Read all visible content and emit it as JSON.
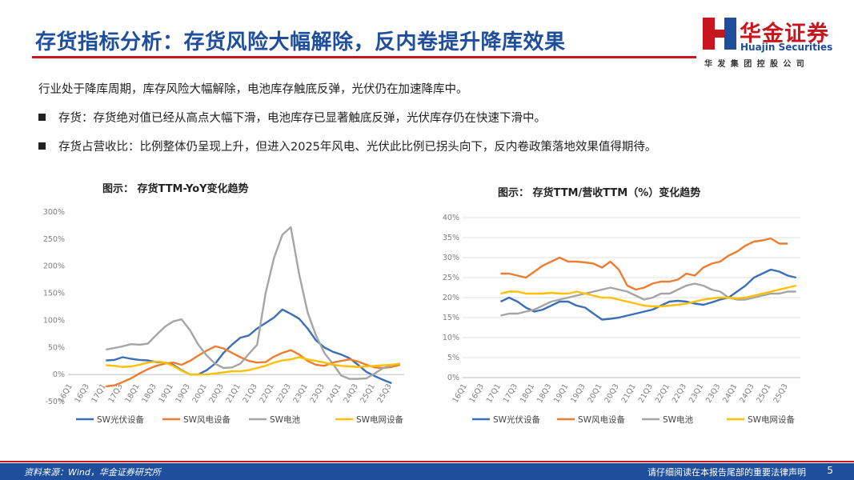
{
  "title": "存货指标分析：存货风险大幅解除，反内卷提升降库效果",
  "logo": {
    "cn": "华金证券",
    "en": "Huajin Securities",
    "sub": "华发集团控股公司"
  },
  "intro": "行业处于降库周期，库存风险大幅解除，电池库存触底反弹，光伏仍在加速降库中。",
  "bullets": [
    "存货：存货绝对值已经从高点大幅下滑，电池库存已显著触底反弹，光伏库存仍在快速下滑中。",
    "存货占营收比：比例整体仍呈现上升，但进入2025年风电、光伏此比例已拐头向下，反内卷政策落地效果值得期待。"
  ],
  "colors": {
    "pv": "#3d6fb6",
    "wind": "#ed7d31",
    "battery": "#a5a5a5",
    "grid": "#ffc000",
    "brand_blue": "#1f4e9c",
    "brand_red": "#c9151e"
  },
  "chart_data": [
    {
      "type": "line",
      "title": "图示：  存货TTM-YoY变化趋势",
      "ylim": [
        -50,
        300
      ],
      "yticks": [
        "-50%",
        "0%",
        "50%",
        "100%",
        "150%",
        "200%",
        "250%",
        "300%"
      ],
      "ytick_values": [
        -50,
        0,
        50,
        100,
        150,
        200,
        250,
        300
      ],
      "x_labels": [
        "16Q1",
        "16Q3",
        "17Q1",
        "17Q3",
        "18Q1",
        "18Q3",
        "19Q1",
        "19Q3",
        "20Q1",
        "20Q3",
        "21Q1",
        "21Q3",
        "22Q1",
        "22Q3",
        "23Q1",
        "23Q3",
        "24Q1",
        "24Q3",
        "25Q1",
        "25Q3"
      ],
      "series": [
        {
          "name": "SW光伏设备",
          "start": 4,
          "values": [
            26,
            27,
            32,
            29,
            27,
            26,
            23,
            22,
            18,
            8,
            0,
            0,
            8,
            20,
            40,
            55,
            68,
            72,
            85,
            95,
            105,
            120,
            112,
            103,
            85,
            63,
            50,
            42,
            37,
            30,
            18,
            5,
            -3,
            -10,
            -16
          ]
        },
        {
          "name": "SW风电设备",
          "start": 4,
          "values": [
            -22,
            -20,
            -14,
            -7,
            2,
            10,
            16,
            20,
            22,
            18,
            25,
            35,
            44,
            52,
            48,
            40,
            32,
            25,
            22,
            23,
            33,
            40,
            45,
            37,
            25,
            18,
            16,
            22,
            25,
            28,
            24,
            18,
            13,
            12,
            14,
            18
          ]
        },
        {
          "name": "SW电池",
          "start": 4,
          "values": [
            46,
            49,
            52,
            56,
            55,
            57,
            73,
            88,
            98,
            102,
            82,
            55,
            35,
            20,
            12,
            13,
            20,
            38,
            55,
            150,
            215,
            258,
            272,
            185,
            115,
            72,
            40,
            20,
            -2,
            -8,
            -8,
            -7,
            2,
            12,
            17,
            20
          ]
        },
        {
          "name": "SW电网设备",
          "start": 4,
          "values": [
            17,
            16,
            14,
            15,
            18,
            22,
            24,
            22,
            16,
            7,
            0,
            0,
            0,
            2,
            4,
            6,
            6,
            8,
            12,
            16,
            22,
            26,
            28,
            32,
            28,
            25,
            22,
            18,
            16,
            15,
            14,
            15,
            16,
            17,
            18,
            20
          ]
        }
      ]
    },
    {
      "type": "line",
      "title": "图示：  存货TTM/营收TTM（%）变化趋势",
      "ylim": [
        0,
        40
      ],
      "yticks": [
        "0%",
        "5%",
        "10%",
        "15%",
        "20%",
        "25%",
        "30%",
        "35%",
        "40%"
      ],
      "ytick_values": [
        0,
        5,
        10,
        15,
        20,
        25,
        30,
        35,
        40
      ],
      "x_labels": [
        "16Q1",
        "16Q3",
        "17Q1",
        "17Q3",
        "18Q1",
        "18Q3",
        "19Q1",
        "19Q3",
        "20Q1",
        "20Q3",
        "21Q1",
        "21Q3",
        "22Q1",
        "22Q3",
        "23Q1",
        "23Q3",
        "24Q1",
        "24Q3",
        "25Q1",
        "25Q3"
      ],
      "series": [
        {
          "name": "SW光伏设备",
          "start": 4,
          "values": [
            19,
            20,
            19,
            17.5,
            16.5,
            17,
            18,
            19,
            19,
            18,
            17.5,
            16,
            14.5,
            14.7,
            15,
            15.5,
            16,
            16.5,
            17,
            18,
            19,
            19.2,
            19,
            18.5,
            18.2,
            18.8,
            19.5,
            20,
            21.5,
            23,
            25,
            26,
            27,
            26.5,
            25.5,
            25
          ]
        },
        {
          "name": "SW风电设备",
          "start": 4,
          "values": [
            26,
            26,
            25.5,
            25,
            26.5,
            28,
            29,
            30,
            29,
            29,
            28.8,
            28.5,
            27.5,
            29,
            27,
            23,
            22,
            22.5,
            23.5,
            24,
            24,
            24.5,
            26,
            25.5,
            27.5,
            28.5,
            29,
            30.5,
            31.5,
            33,
            34,
            34.3,
            34.8,
            33.5,
            33.5
          ]
        },
        {
          "name": "SW电池",
          "start": 4,
          "values": [
            15.5,
            16,
            16,
            16.5,
            17,
            18,
            19,
            19.5,
            20,
            20.5,
            21,
            21.5,
            22,
            22.5,
            22,
            21.5,
            20.5,
            19.5,
            20,
            21,
            21,
            22,
            23,
            23.5,
            23,
            22,
            21.5,
            20,
            19.5,
            19.5,
            20,
            20.5,
            21,
            21,
            21.5,
            21.5
          ]
        },
        {
          "name": "SW电网设备",
          "start": 4,
          "values": [
            21,
            21.5,
            21.5,
            21,
            21,
            21,
            21.2,
            21,
            21,
            21.5,
            21,
            20.5,
            20,
            20,
            19.5,
            19,
            18.5,
            18,
            17.8,
            17.8,
            18,
            18.2,
            18.5,
            19,
            19.5,
            19.8,
            20,
            20,
            19.8,
            20,
            20.5,
            21,
            21.5,
            22,
            22.5,
            23
          ]
        }
      ]
    }
  ],
  "footer": {
    "source": "资料来源：Wind，华金证券研究所",
    "disclaimer": "请仔细阅读在本报告尾部的重要法律声明",
    "page": "5"
  }
}
